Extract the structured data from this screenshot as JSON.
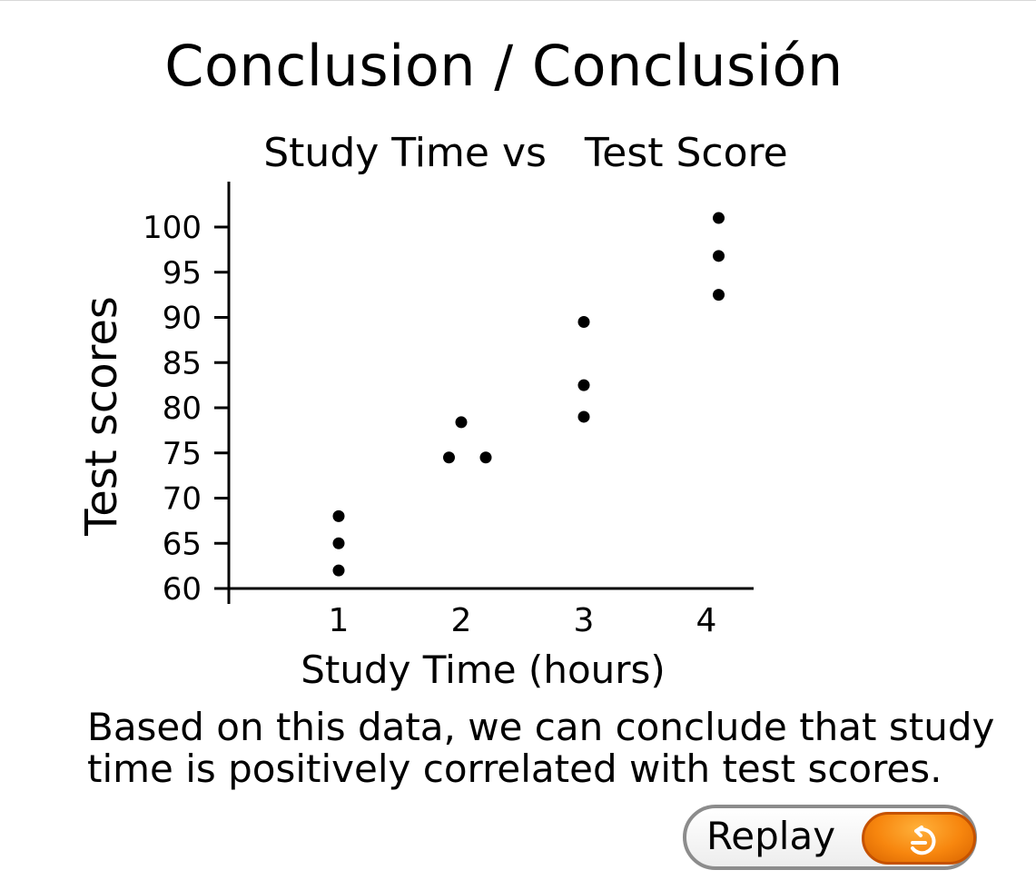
{
  "page_title": "Conclusion / Conclusión",
  "conclusion_text": "Based on this data, we can conclude that study time is positively correlated with test scores.",
  "replay": {
    "label": "Replay",
    "icon": "replay-icon",
    "accent_color": "#f7860e"
  },
  "chart_data": {
    "type": "scatter",
    "title": "Study Time vs   Test Score",
    "xlabel": "Study Time (hours)",
    "ylabel": "Test scores",
    "x_ticks": [
      "1",
      "2",
      "3",
      "4"
    ],
    "y_ticks": [
      "60",
      "65",
      "70",
      "75",
      "80",
      "85",
      "90",
      "95",
      "100"
    ],
    "ylim": [
      60,
      100
    ],
    "grid": false,
    "points": [
      {
        "x": 1,
        "y": 68
      },
      {
        "x": 1,
        "y": 65
      },
      {
        "x": 1,
        "y": 62
      },
      {
        "x": 2,
        "y": 78.4
      },
      {
        "x": 1.9,
        "y": 74.5
      },
      {
        "x": 2.2,
        "y": 74.5
      },
      {
        "x": 3,
        "y": 89.5
      },
      {
        "x": 3,
        "y": 82.5
      },
      {
        "x": 3,
        "y": 79
      },
      {
        "x": 4.1,
        "y": 101
      },
      {
        "x": 4.1,
        "y": 96.8
      },
      {
        "x": 4.1,
        "y": 92.5
      }
    ]
  }
}
